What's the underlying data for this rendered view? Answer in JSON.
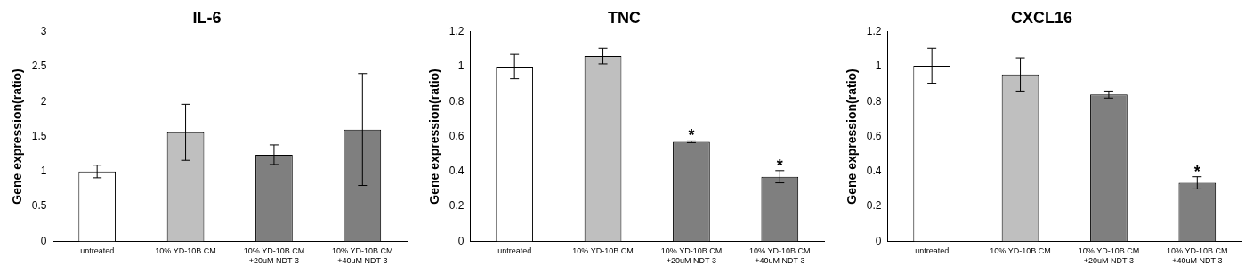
{
  "chart_data": [
    {
      "type": "bar",
      "title": "IL-6",
      "y_label": "Gene expression(ratio)",
      "categories": [
        "untreated",
        "10% YD-10B CM",
        [
          "10% YD-10B CM",
          "+20uM NDT-3"
        ],
        [
          "10% YD-10B CM",
          "+40uM NDT-3"
        ]
      ],
      "values": [
        1.0,
        1.56,
        1.24,
        1.6
      ],
      "errors": [
        0.09,
        0.4,
        0.14,
        0.8
      ],
      "annotations": [
        null,
        null,
        null,
        null
      ],
      "colors": [
        "#ffffff",
        "#bfbfbf",
        "#7f7f7f",
        "#7f7f7f"
      ],
      "ylim": [
        0,
        3
      ],
      "yticks": [
        0,
        0.5,
        1,
        1.5,
        2,
        2.5,
        3
      ],
      "grid": false
    },
    {
      "type": "bar",
      "title": "TNC",
      "y_label": "Gene expression(ratio)",
      "categories": [
        "untreated",
        "10% YD-10B CM",
        [
          "10% YD-10B CM",
          "+20uM NDT-3"
        ],
        [
          "10% YD-10B CM",
          "+40uM NDT-3"
        ]
      ],
      "values": [
        1.0,
        1.06,
        0.57,
        0.37
      ],
      "errors": [
        0.07,
        0.045,
        0.005,
        0.035
      ],
      "annotations": [
        null,
        null,
        "*",
        "*"
      ],
      "colors": [
        "#ffffff",
        "#bfbfbf",
        "#7f7f7f",
        "#7f7f7f"
      ],
      "ylim": [
        0,
        1.2
      ],
      "yticks": [
        0,
        0.2,
        0.4,
        0.6,
        0.8,
        1,
        1.2
      ],
      "grid": false
    },
    {
      "type": "bar",
      "title": "CXCL16",
      "y_label": "Gene expression(ratio)",
      "categories": [
        "untreated",
        "10% YD-10B CM",
        [
          "10% YD-10B CM",
          "+20uM NDT-3"
        ],
        [
          "10% YD-10B CM",
          "+40uM NDT-3"
        ]
      ],
      "values": [
        1.005,
        0.955,
        0.84,
        0.335
      ],
      "errors": [
        0.1,
        0.095,
        0.02,
        0.035
      ],
      "annotations": [
        null,
        null,
        null,
        "*"
      ],
      "colors": [
        "#ffffff",
        "#bfbfbf",
        "#7f7f7f",
        "#7f7f7f"
      ],
      "ylim": [
        0,
        1.2
      ],
      "yticks": [
        0,
        0.2,
        0.4,
        0.6,
        0.8,
        1,
        1.2
      ],
      "grid": false
    }
  ]
}
